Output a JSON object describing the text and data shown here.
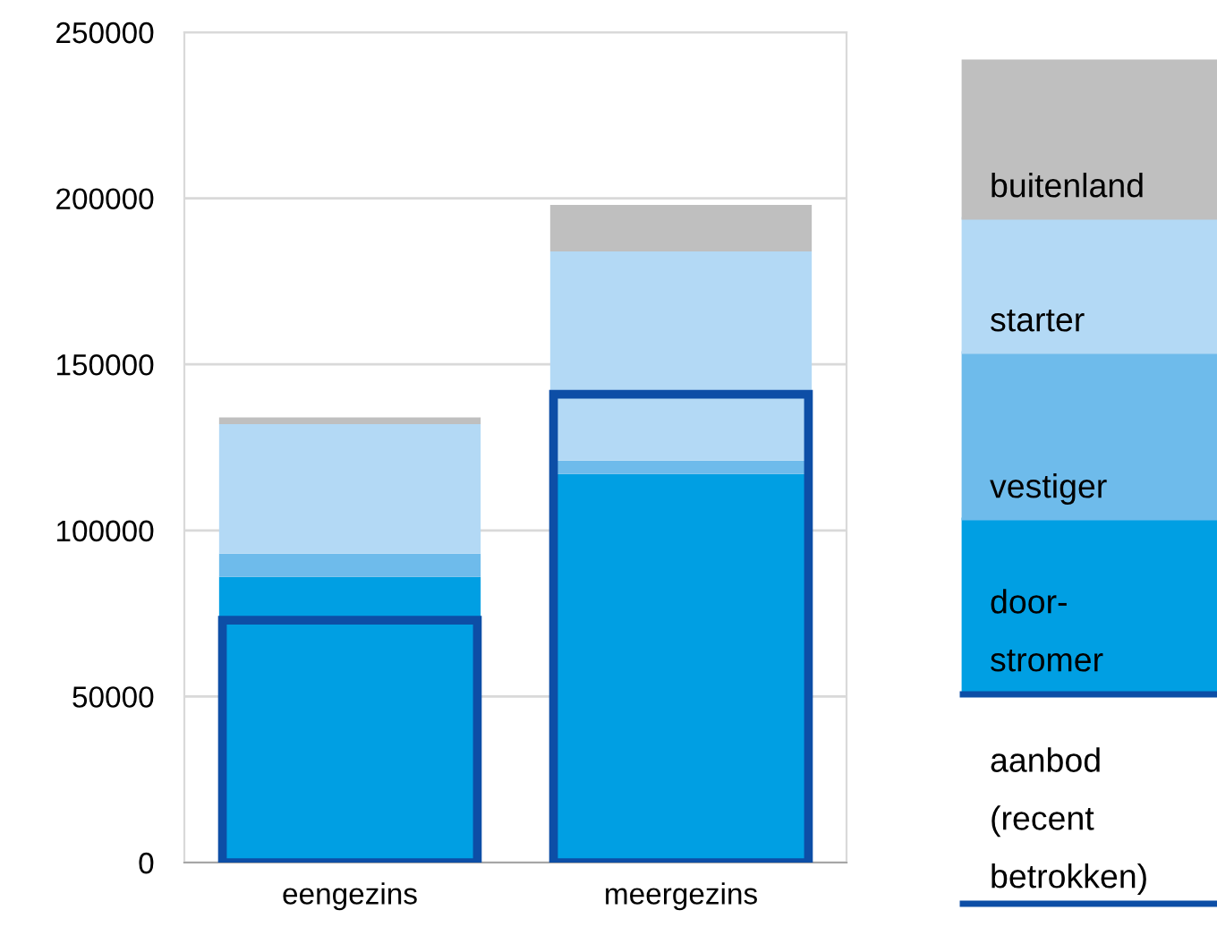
{
  "chart_data": [
    {
      "type": "bar",
      "stacked": true,
      "categories": [
        "eengezins",
        "meergezins"
      ],
      "series": [
        {
          "name": "door-\nstromer",
          "color": "#009fe3",
          "values": [
            86000,
            117000
          ]
        },
        {
          "name": "vestiger",
          "color": "#6ebbeb",
          "values": [
            7000,
            4000
          ]
        },
        {
          "name": "starter",
          "color": "#b3d9f5",
          "values": [
            39000,
            63000
          ]
        },
        {
          "name": "buitenland",
          "color": "#bfbfbf",
          "values": [
            2000,
            14000
          ]
        }
      ],
      "ylim": [
        0,
        250000
      ],
      "yticks": [
        0,
        50000,
        100000,
        150000,
        200000,
        250000
      ],
      "grid": "y",
      "legend": "right"
    },
    {
      "type": "bar",
      "categories": [
        null,
        null
      ],
      "series": [
        {
          "name": "aanbod\n(recent\nbetrokken)",
          "color": "#0d4ea6",
          "values": [
            73000,
            141000
          ]
        }
      ],
      "ylim": [
        0,
        250000
      ],
      "legend": "right"
    }
  ]
}
